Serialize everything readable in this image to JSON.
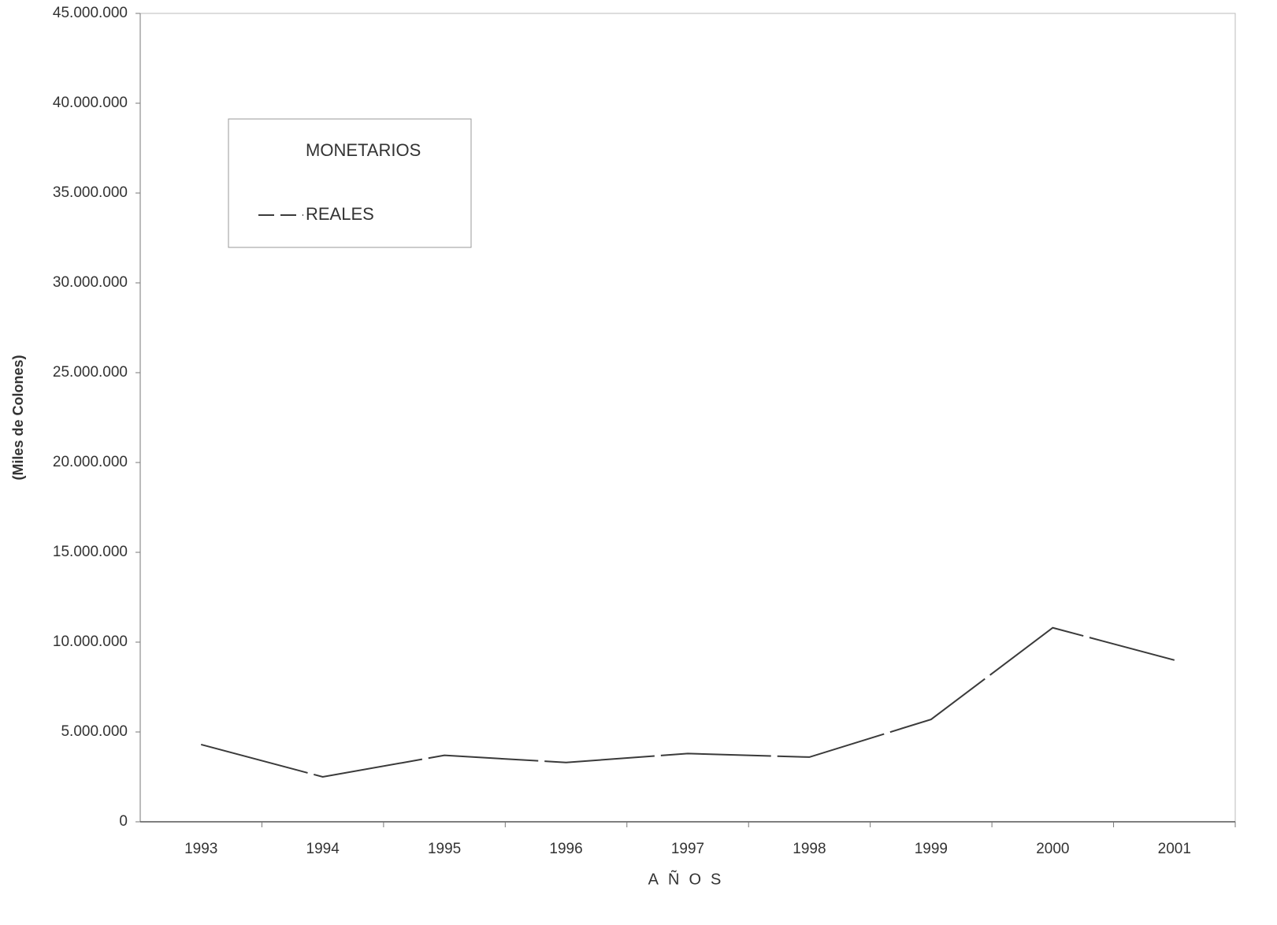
{
  "chart_data": {
    "type": "line",
    "y_label": "(Miles de Colones)",
    "x_label": "AÑOS",
    "categories": [
      "1993",
      "1994",
      "1995",
      "1996",
      "1997",
      "1998",
      "1999",
      "2000",
      "2001"
    ],
    "series": [
      {
        "name": "MONETARIOS",
        "color": "#ffffff",
        "values": [
          null,
          null,
          null,
          null,
          null,
          null,
          null,
          null,
          null
        ]
      },
      {
        "name": "REALES",
        "color": "#3a3a3a",
        "values": [
          4300000,
          2500000,
          3700000,
          3300000,
          3800000,
          3600000,
          5700000,
          10800000,
          9000000
        ]
      }
    ],
    "ylim": [
      0,
      45000000
    ],
    "yticks": [
      {
        "value": 0,
        "label": "0"
      },
      {
        "value": 5000000,
        "label": "5.000.000"
      },
      {
        "value": 10000000,
        "label": "10.000.000"
      },
      {
        "value": 15000000,
        "label": "15.000.000"
      },
      {
        "value": 20000000,
        "label": "20.000.000"
      },
      {
        "value": 25000000,
        "label": "25.000.000"
      },
      {
        "value": 30000000,
        "label": "30.000.000"
      },
      {
        "value": 35000000,
        "label": "35.000.000"
      },
      {
        "value": 40000000,
        "label": "40.000.000"
      },
      {
        "value": 45000000,
        "label": "45.000.000"
      }
    ],
    "grid": false,
    "legend": "upper left"
  }
}
